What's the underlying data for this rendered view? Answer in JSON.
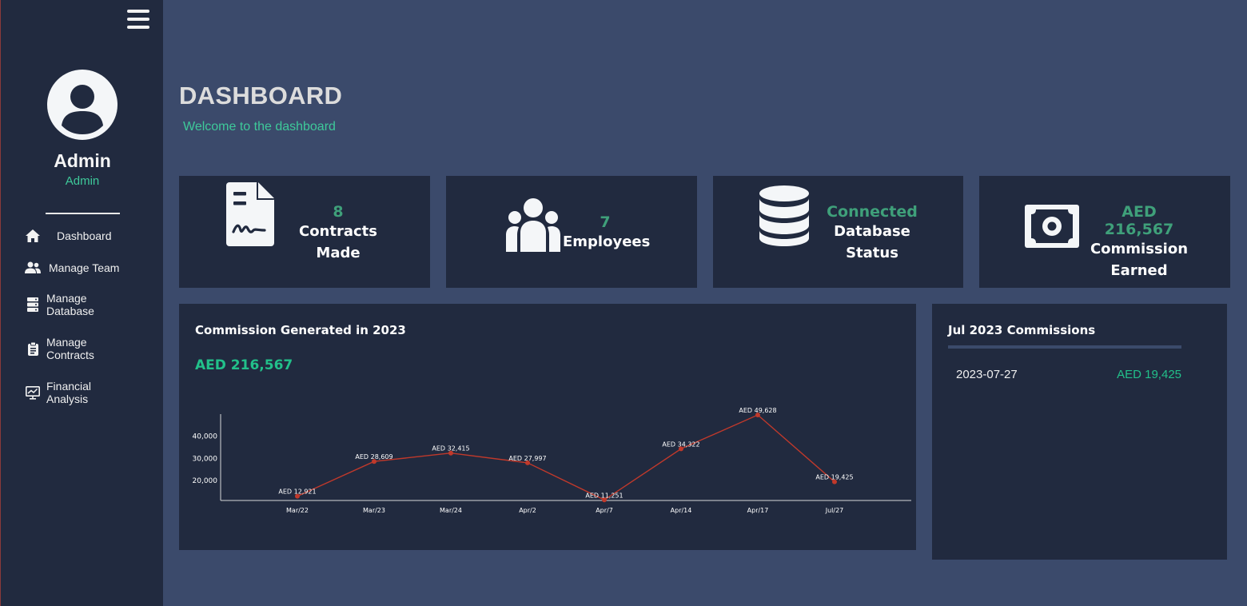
{
  "sidebar": {
    "menu_icon": "hamburger-icon",
    "avatar_icon": "user-circle-icon",
    "user_name": "Admin",
    "user_role": "Admin",
    "nav": [
      {
        "label1": "Dashboard",
        "label2": "",
        "icon": "home-icon"
      },
      {
        "label1": "Manage Team",
        "label2": "",
        "icon": "users-icon"
      },
      {
        "label1": "Manage",
        "label2": "Database",
        "icon": "server-icon"
      },
      {
        "label1": "Manage",
        "label2": "Contracts",
        "icon": "clipboard-icon"
      },
      {
        "label1": "Financial",
        "label2": "Analysis",
        "icon": "chart-monitor-icon"
      }
    ]
  },
  "header": {
    "title": "DASHBOARD",
    "subtitle": "Welcome to the dashboard"
  },
  "stats": [
    {
      "value": "8",
      "label1": "Contracts",
      "label2": "Made",
      "icon": "contract-signature-icon"
    },
    {
      "value": "7",
      "label1": "Employees",
      "label2": "",
      "icon": "people-group-icon"
    },
    {
      "value": "Connected",
      "label1": "Database",
      "label2": "Status",
      "icon": "database-icon"
    },
    {
      "value": "AED 216,567",
      "label1": "Commission",
      "label2": "Earned",
      "icon": "money-bill-icon"
    }
  ],
  "chart_panel": {
    "title": "Commission Generated in 2023",
    "total": "AED 216,567"
  },
  "chart_data": {
    "type": "line",
    "title": "Commission Generated in 2023",
    "categories": [
      "Mar/22",
      "Mar/23",
      "Mar/24",
      "Apr/2",
      "Apr/7",
      "Apr/14",
      "Apr/17",
      "Jul/27"
    ],
    "values": [
      12921,
      28609,
      32415,
      27997,
      11251,
      34322,
      49628,
      19425
    ],
    "point_labels": [
      "AED 12,921",
      "AED 28,609",
      "AED 32,415",
      "AED 27,997",
      "AED 11,251",
      "AED 34,322",
      "AED 49,628",
      "AED 19,425"
    ],
    "y_ticks": [
      20000,
      30000,
      40000
    ],
    "y_tick_labels": [
      "20,000",
      "30,000",
      "40,000"
    ],
    "ylim": [
      11000,
      50000
    ],
    "line_color": "#c0392b",
    "grid": false
  },
  "list_panel": {
    "title": "Jul 2023 Commissions",
    "rows": [
      {
        "date": "2023-07-27",
        "amount": "AED 19,425"
      }
    ]
  },
  "colors": {
    "accent": "#3ec99a",
    "panel": "#212a3f",
    "background": "#3b4a6b"
  }
}
